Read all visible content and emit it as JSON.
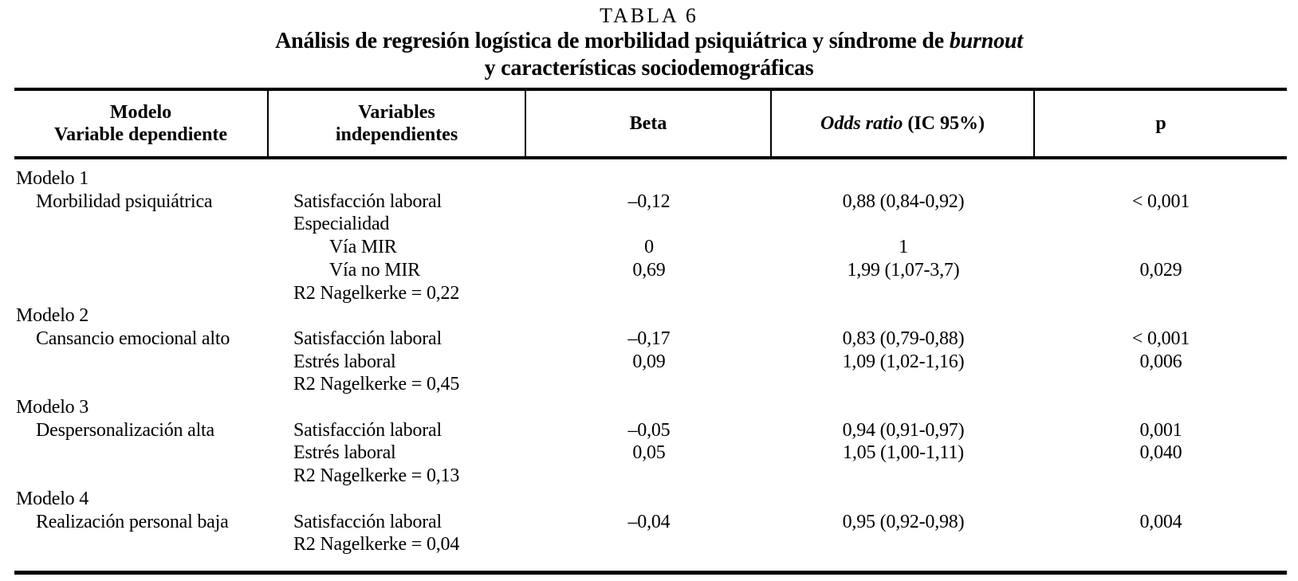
{
  "page": {
    "background_color": "#ffffff",
    "text_color": "#000000",
    "rule_color": "#000000"
  },
  "title": {
    "caption": "TABLA 6",
    "subtitle_line1_prefix": "Análisis de regresión logística de morbilidad psiquiátrica y síndrome de ",
    "subtitle_line1_italic": "burnout",
    "subtitle_line2": "y características sociodemográficas"
  },
  "table": {
    "header": {
      "col1_line1": "Modelo",
      "col1_line2": "Variable dependiente",
      "col2_line1": "Variables",
      "col2_line2": "independientes",
      "col3": "Beta",
      "col4_italic": "Odds ratio",
      "col4_rest": " (IC 95%)",
      "col5": "p"
    },
    "rows": [
      {
        "model": "Modelo 1",
        "model_indent": false,
        "variable": "",
        "beta": "",
        "odds": "",
        "p": ""
      },
      {
        "model": "Morbilidad psiquiátrica",
        "model_indent": true,
        "variable": "Satisfacción laboral",
        "beta": "–0,12",
        "odds": "0,88 (0,84-0,92)",
        "p": "< 0,001"
      },
      {
        "model": "",
        "variable": "Especialidad",
        "beta": "",
        "odds": "",
        "p": ""
      },
      {
        "model": "",
        "variable": "Vía MIR",
        "variable_indent": true,
        "beta": "0",
        "odds": "1",
        "p": ""
      },
      {
        "model": "",
        "variable": "Vía no MIR",
        "variable_indent": true,
        "beta": "0,69",
        "odds": "1,99 (1,07-3,7)",
        "p": "0,029"
      },
      {
        "model": "",
        "variable": "R2 Nagelkerke = 0,22",
        "beta": "",
        "odds": "",
        "p": ""
      },
      {
        "model": "Modelo 2",
        "model_indent": false,
        "variable": "",
        "beta": "",
        "odds": "",
        "p": ""
      },
      {
        "model": "Cansancio emocional alto",
        "model_indent": true,
        "variable": "Satisfacción laboral",
        "beta": "–0,17",
        "odds": "0,83 (0,79-0,88)",
        "p": "< 0,001"
      },
      {
        "model": "",
        "variable": "Estrés laboral",
        "beta": "0,09",
        "odds": "1,09 (1,02-1,16)",
        "p": "0,006"
      },
      {
        "model": "",
        "variable": "R2 Nagelkerke = 0,45",
        "beta": "",
        "odds": "",
        "p": ""
      },
      {
        "model": "Modelo 3",
        "model_indent": false,
        "variable": "",
        "beta": "",
        "odds": "",
        "p": ""
      },
      {
        "model": "Despersonalización alta",
        "model_indent": true,
        "variable": "Satisfacción laboral",
        "beta": "–0,05",
        "odds": "0,94 (0,91-0,97)",
        "p": "0,001"
      },
      {
        "model": "",
        "variable": "Estrés laboral",
        "beta": "0,05",
        "odds": "1,05 (1,00-1,11)",
        "p": "0,040"
      },
      {
        "model": "",
        "variable": "R2 Nagelkerke = 0,13",
        "beta": "",
        "odds": "",
        "p": ""
      },
      {
        "model": "Modelo 4",
        "model_indent": false,
        "variable": "",
        "beta": "",
        "odds": "",
        "p": ""
      },
      {
        "model": "Realización personal baja",
        "model_indent": true,
        "variable": "Satisfacción laboral",
        "beta": "–0,04",
        "odds": "0,95 (0,92-0,98)",
        "p": "0,004"
      },
      {
        "model": "",
        "variable": "R2 Nagelkerke = 0,04",
        "beta": "",
        "odds": "",
        "p": ""
      }
    ]
  },
  "chart_data": {
    "type": "table",
    "title": "TABLA 6 — Análisis de regresión logística de morbilidad psiquiátrica y síndrome de burnout y características sociodemográficas",
    "columns": [
      "Modelo / Variable dependiente",
      "Variables independientes",
      "Beta",
      "Odds ratio (IC 95%)",
      "p"
    ],
    "models": [
      {
        "model": "Modelo 1",
        "dependent_variable": "Morbilidad psiquiátrica",
        "r2_nagelkerke": "0,22",
        "predictors": [
          {
            "variable": "Satisfacción laboral",
            "beta": "–0,12",
            "odds_ratio": "0,88 (0,84-0,92)",
            "p": "< 0,001"
          },
          {
            "variable": "Especialidad",
            "beta": "",
            "odds_ratio": "",
            "p": ""
          },
          {
            "variable": "Vía MIR",
            "beta": "0",
            "odds_ratio": "1",
            "p": ""
          },
          {
            "variable": "Vía no MIR",
            "beta": "0,69",
            "odds_ratio": "1,99 (1,07-3,7)",
            "p": "0,029"
          }
        ]
      },
      {
        "model": "Modelo 2",
        "dependent_variable": "Cansancio emocional alto",
        "r2_nagelkerke": "0,45",
        "predictors": [
          {
            "variable": "Satisfacción laboral",
            "beta": "–0,17",
            "odds_ratio": "0,83 (0,79-0,88)",
            "p": "< 0,001"
          },
          {
            "variable": "Estrés laboral",
            "beta": "0,09",
            "odds_ratio": "1,09 (1,02-1,16)",
            "p": "0,006"
          }
        ]
      },
      {
        "model": "Modelo 3",
        "dependent_variable": "Despersonalización alta",
        "r2_nagelkerke": "0,13",
        "predictors": [
          {
            "variable": "Satisfacción laboral",
            "beta": "–0,05",
            "odds_ratio": "0,94 (0,91-0,97)",
            "p": "0,001"
          },
          {
            "variable": "Estrés laboral",
            "beta": "0,05",
            "odds_ratio": "1,05 (1,00-1,11)",
            "p": "0,040"
          }
        ]
      },
      {
        "model": "Modelo 4",
        "dependent_variable": "Realización personal baja",
        "r2_nagelkerke": "0,04",
        "predictors": [
          {
            "variable": "Satisfacción laboral",
            "beta": "–0,04",
            "odds_ratio": "0,95 (0,92-0,98)",
            "p": "0,004"
          }
        ]
      }
    ]
  }
}
